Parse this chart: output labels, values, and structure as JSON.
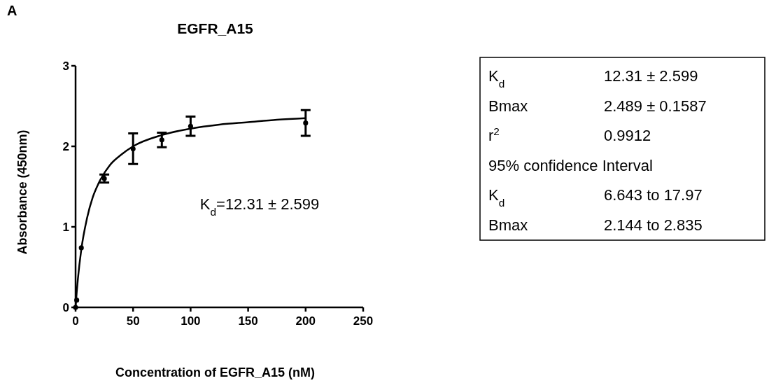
{
  "chart_data": [
    {
      "type": "scatter",
      "title": "EGFR_A15",
      "xlabel": "Concentration of EGFR_A15 (nM)",
      "ylabel": "Absorbance (450nm)",
      "annotations": [
        "A",
        "K$_{d}$=12.31 ± 2.599"
      ],
      "xlim": [
        0,
        250
      ],
      "xticks": [
        0,
        50,
        100,
        150,
        200,
        250
      ],
      "ylim": [
        0,
        3
      ],
      "yticks": [
        0,
        1,
        2,
        3
      ],
      "marker": "circle",
      "grid": false,
      "series": [
        {
          "type": "scatter",
          "color": "#000000",
          "x": [
            0,
            1,
            5,
            25,
            50,
            75,
            100,
            200
          ],
          "values": [
            0,
            0.09,
            0.74,
            1.6,
            1.97,
            2.08,
            2.25,
            2.29
          ],
          "errors": [
            null,
            null,
            null,
            0.05,
            0.19,
            0.09,
            0.12,
            0.16
          ]
        },
        {
          "type": "line",
          "marker": "none",
          "color": "#000000",
          "x": [
            0,
            1,
            2,
            5,
            10,
            15,
            20,
            30,
            40,
            50,
            75,
            100,
            125,
            150,
            175,
            200
          ],
          "values": [
            0,
            0.19,
            0.35,
            0.72,
            1.11,
            1.37,
            1.54,
            1.77,
            1.9,
            2.0,
            2.14,
            2.22,
            2.27,
            2.3,
            2.33,
            2.35
          ]
        }
      ]
    },
    {
      "type": "other",
      "categories": [
        "K$_{d}$",
        "Bmax",
        "r$^{2}$",
        "95% confidence Interval",
        "K$_{d}$",
        "Bmax"
      ],
      "value_labels": [
        "12.31 ± 2.599",
        "2.489 ± 0.1587",
        "0.9912",
        null,
        "6.643 to 17.97",
        "2.144 to 2.835"
      ]
    }
  ]
}
